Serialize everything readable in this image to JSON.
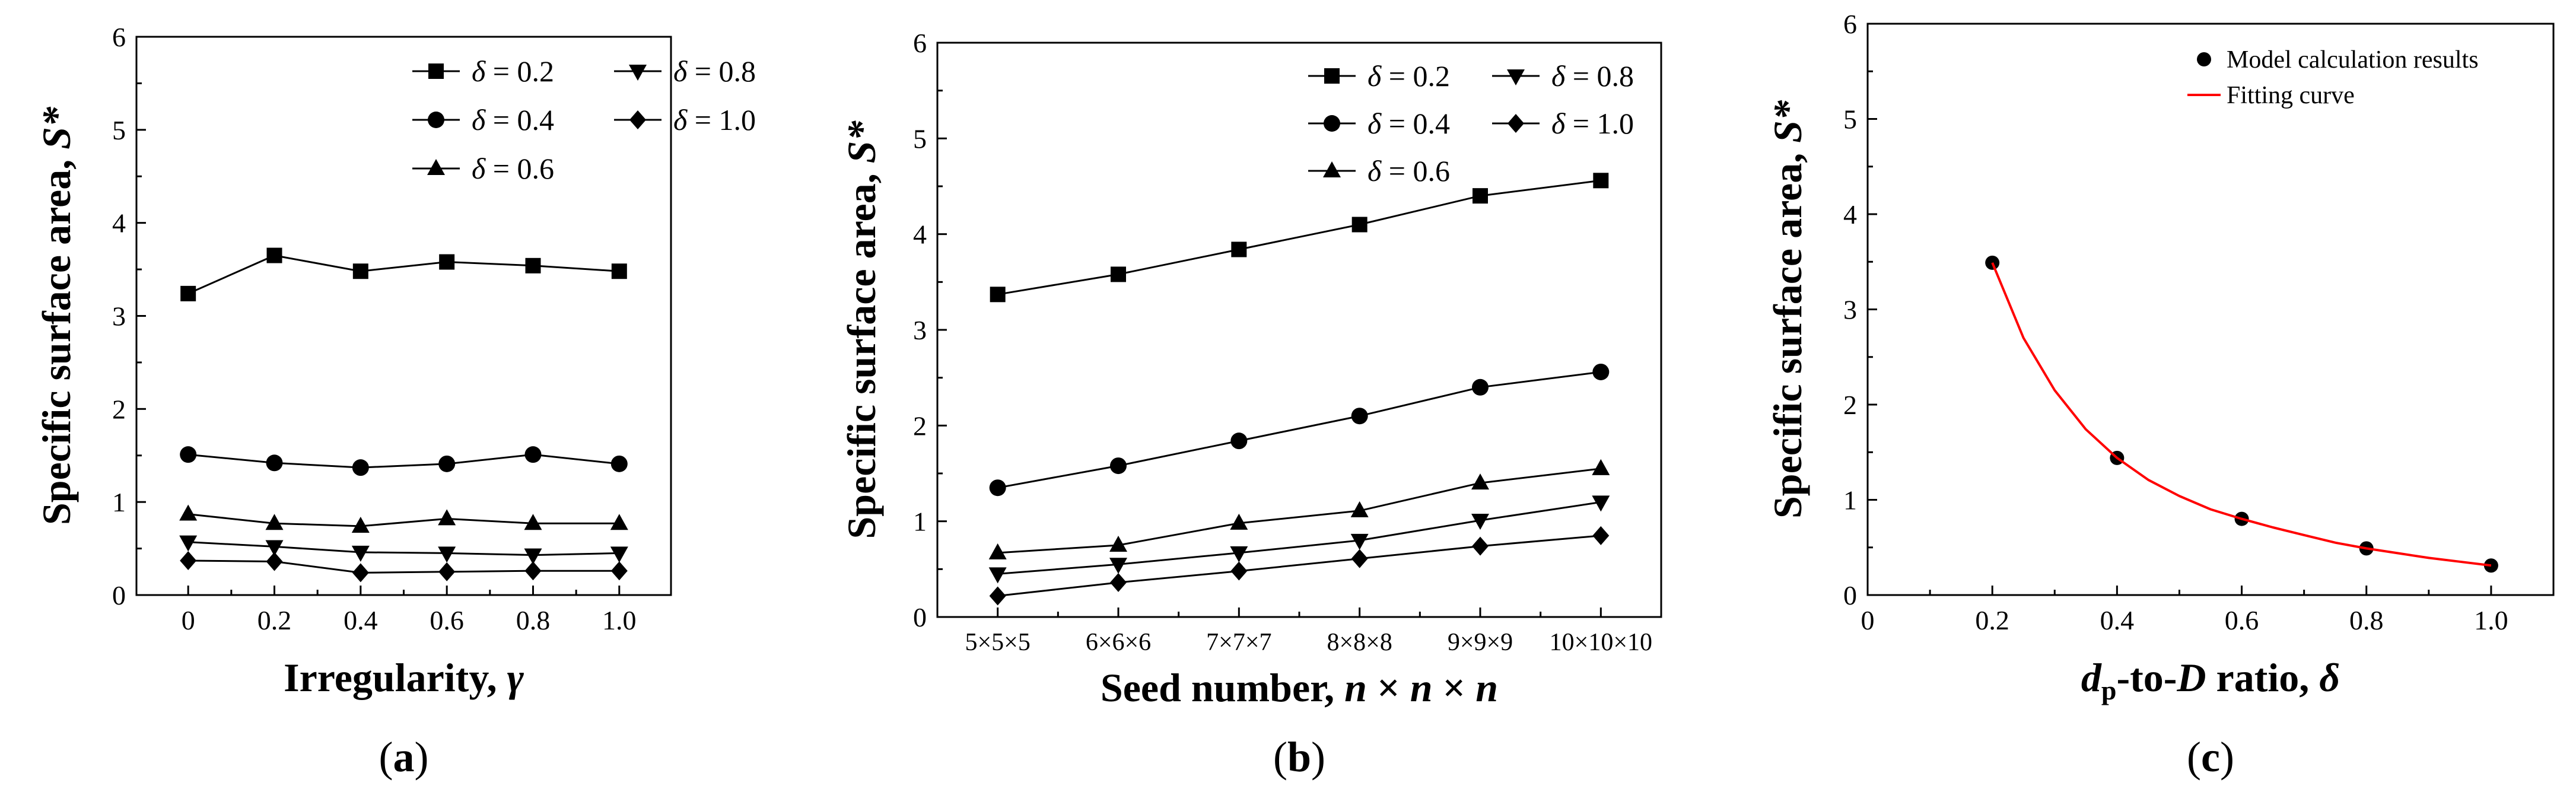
{
  "chart_data": [
    {
      "type": "line",
      "panel_label": "(a)",
      "xlabel": "Irregularity, γ",
      "xlabel_parts": [
        "Irregularity, ",
        "γ"
      ],
      "ylabel": "Specific surface area, S*",
      "ylabel_parts": [
        "Specific surface area, ",
        "S*"
      ],
      "categories": [
        "0",
        "0.2",
        "0.4",
        "0.6",
        "0.8",
        "1.0"
      ],
      "x": [
        0,
        0.2,
        0.4,
        0.6,
        0.8,
        1.0
      ],
      "xlim": [
        -0.12,
        1.12
      ],
      "ylim": [
        0,
        6
      ],
      "yticks": [
        "0",
        "1",
        "2",
        "3",
        "4",
        "5",
        "6"
      ],
      "series": [
        {
          "name": "δ = 0.2",
          "delta": "0.2",
          "marker": "square",
          "values": [
            3.24,
            3.65,
            3.48,
            3.58,
            3.54,
            3.48
          ]
        },
        {
          "name": "δ = 0.4",
          "delta": "0.4",
          "marker": "circle",
          "values": [
            1.51,
            1.42,
            1.37,
            1.41,
            1.51,
            1.41
          ]
        },
        {
          "name": "δ = 0.6",
          "delta": "0.6",
          "marker": "triangle-up",
          "values": [
            0.87,
            0.77,
            0.74,
            0.82,
            0.77,
            0.77
          ]
        },
        {
          "name": "δ = 0.8",
          "delta": "0.8",
          "marker": "triangle-down",
          "values": [
            0.57,
            0.52,
            0.46,
            0.45,
            0.43,
            0.45
          ]
        },
        {
          "name": "δ = 1.0",
          "delta": "1.0",
          "marker": "diamond",
          "values": [
            0.37,
            0.36,
            0.24,
            0.25,
            0.26,
            0.26
          ]
        }
      ],
      "legend_position": "top-right",
      "grid": false
    },
    {
      "type": "line",
      "panel_label": "(b)",
      "xlabel": "Seed number, n × n × n",
      "xlabel_parts": [
        "Seed number, ",
        "n",
        " × ",
        "n",
        " × ",
        "n"
      ],
      "ylabel": "Specific surface area, S*",
      "ylabel_parts": [
        "Specific surface area, ",
        "S*"
      ],
      "categories": [
        "5×5×5",
        "6×6×6",
        "7×7×7",
        "8×8×8",
        "9×9×9",
        "10×10×10"
      ],
      "ylim": [
        0,
        6
      ],
      "yticks": [
        "0",
        "1",
        "2",
        "3",
        "4",
        "5",
        "6"
      ],
      "series": [
        {
          "name": "δ = 0.2",
          "delta": "0.2",
          "marker": "square",
          "values": [
            3.37,
            3.58,
            3.84,
            4.1,
            4.4,
            4.56
          ]
        },
        {
          "name": "δ = 0.4",
          "delta": "0.4",
          "marker": "circle",
          "values": [
            1.35,
            1.58,
            1.84,
            2.1,
            2.4,
            2.56
          ]
        },
        {
          "name": "δ = 0.6",
          "delta": "0.6",
          "marker": "triangle-up",
          "values": [
            0.67,
            0.75,
            0.98,
            1.11,
            1.4,
            1.55
          ]
        },
        {
          "name": "δ = 0.8",
          "delta": "0.8",
          "marker": "triangle-down",
          "values": [
            0.45,
            0.55,
            0.67,
            0.8,
            1.01,
            1.2
          ]
        },
        {
          "name": "δ = 1.0",
          "delta": "1.0",
          "marker": "diamond",
          "values": [
            0.22,
            0.36,
            0.48,
            0.61,
            0.74,
            0.85
          ]
        }
      ],
      "legend_position": "top-left",
      "grid": false
    },
    {
      "type": "scatter",
      "panel_label": "(c)",
      "xlabel": "dp-to-D ratio, δ",
      "xlabel_parts": [
        "d",
        "p",
        "-to-",
        "D",
        " ratio, ",
        "δ"
      ],
      "ylabel": "Specific surface area, S*",
      "ylabel_parts": [
        "Specific surface area, ",
        "S*"
      ],
      "xlim": [
        0,
        1.1
      ],
      "ylim": [
        0,
        6
      ],
      "xticks": [
        "0",
        "0.2",
        "0.4",
        "0.6",
        "0.8",
        "1.0"
      ],
      "yticks": [
        "0",
        "1",
        "2",
        "3",
        "4",
        "5",
        "6"
      ],
      "series": [
        {
          "name": "Model calculation results",
          "type": "scatter",
          "x": [
            0.2,
            0.4,
            0.6,
            0.8,
            1.0
          ],
          "values": [
            3.49,
            1.44,
            0.8,
            0.49,
            0.31
          ]
        },
        {
          "name": "Fitting curve",
          "type": "line",
          "color": "#ff0000",
          "x": [
            0.2,
            0.25,
            0.3,
            0.35,
            0.4,
            0.45,
            0.5,
            0.55,
            0.6,
            0.65,
            0.7,
            0.75,
            0.8,
            0.85,
            0.9,
            0.95,
            1.0
          ],
          "values": [
            3.49,
            2.7,
            2.15,
            1.74,
            1.44,
            1.21,
            1.04,
            0.9,
            0.8,
            0.71,
            0.63,
            0.55,
            0.49,
            0.44,
            0.39,
            0.35,
            0.31
          ]
        }
      ],
      "legend_position": "top-right",
      "grid": false
    }
  ]
}
